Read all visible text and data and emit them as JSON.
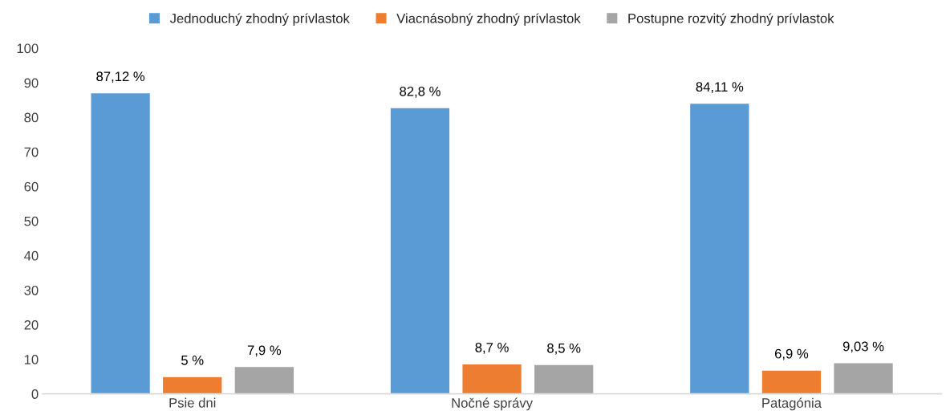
{
  "chart_data": {
    "type": "bar",
    "categories": [
      "Psie dni",
      "Nočné správy",
      "Patagónia"
    ],
    "series": [
      {
        "name": "Jednoduchý zhodný prívlastok",
        "color": "#5b9bd5",
        "values": [
          87.12,
          82.8,
          84.11
        ],
        "value_labels": [
          "87,12 %",
          "82,8 %",
          "84,11 %"
        ]
      },
      {
        "name": "Viacnásobný zhodný prívlastok",
        "color": "#ed7d31",
        "values": [
          5,
          8.7,
          6.9
        ],
        "value_labels": [
          "5 %",
          "8,7 %",
          "6,9 %"
        ]
      },
      {
        "name": "Postupne rozvitý zhodný prívlastok",
        "color": "#a5a5a5",
        "values": [
          7.9,
          8.5,
          9.03
        ],
        "value_labels": [
          "7,9 %",
          "8,5 %",
          "9,03 %"
        ]
      }
    ],
    "ylim": [
      0,
      100
    ],
    "yticks": [
      0,
      10,
      20,
      30,
      40,
      50,
      60,
      70,
      80,
      90,
      100
    ],
    "grid": false,
    "legend": "top"
  }
}
